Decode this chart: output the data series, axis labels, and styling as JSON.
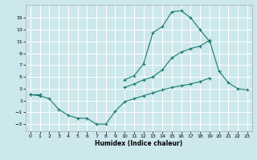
{
  "title": "",
  "xlabel": "Humidex (Indice chaleur)",
  "bg_color": "#cce8ec",
  "grid_color": "#ffffff",
  "line_color": "#1a7a6e",
  "xlim": [
    -0.5,
    23.5
  ],
  "ylim": [
    -4.2,
    17.2
  ],
  "xticks": [
    0,
    1,
    2,
    3,
    4,
    5,
    6,
    7,
    8,
    9,
    10,
    11,
    12,
    13,
    14,
    15,
    16,
    17,
    18,
    19,
    20,
    21,
    22,
    23
  ],
  "yticks": [
    -3,
    -1,
    1,
    3,
    5,
    7,
    9,
    11,
    13,
    15
  ],
  "line1_y": [
    2.0,
    2.0,
    null,
    null,
    null,
    null,
    null,
    null,
    null,
    null,
    4.5,
    5.2,
    7.2,
    12.5,
    13.5,
    16.0,
    16.2,
    15.0,
    13.0,
    11.0,
    null,
    null,
    null,
    null
  ],
  "line2_y": [
    2.0,
    2.0,
    null,
    null,
    null,
    null,
    null,
    null,
    null,
    null,
    3.2,
    3.8,
    4.5,
    5.0,
    6.2,
    8.2,
    9.2,
    9.8,
    10.2,
    11.2,
    6.0,
    4.0,
    3.0,
    2.8
  ],
  "line3_y": [
    2.0,
    1.8,
    1.3,
    -0.5,
    -1.5,
    -2.0,
    -2.0,
    -3.0,
    -3.0,
    -0.8,
    0.8,
    1.3,
    1.8,
    2.3,
    2.8,
    3.2,
    3.5,
    3.8,
    4.2,
    4.8,
    null,
    null,
    null,
    null
  ]
}
